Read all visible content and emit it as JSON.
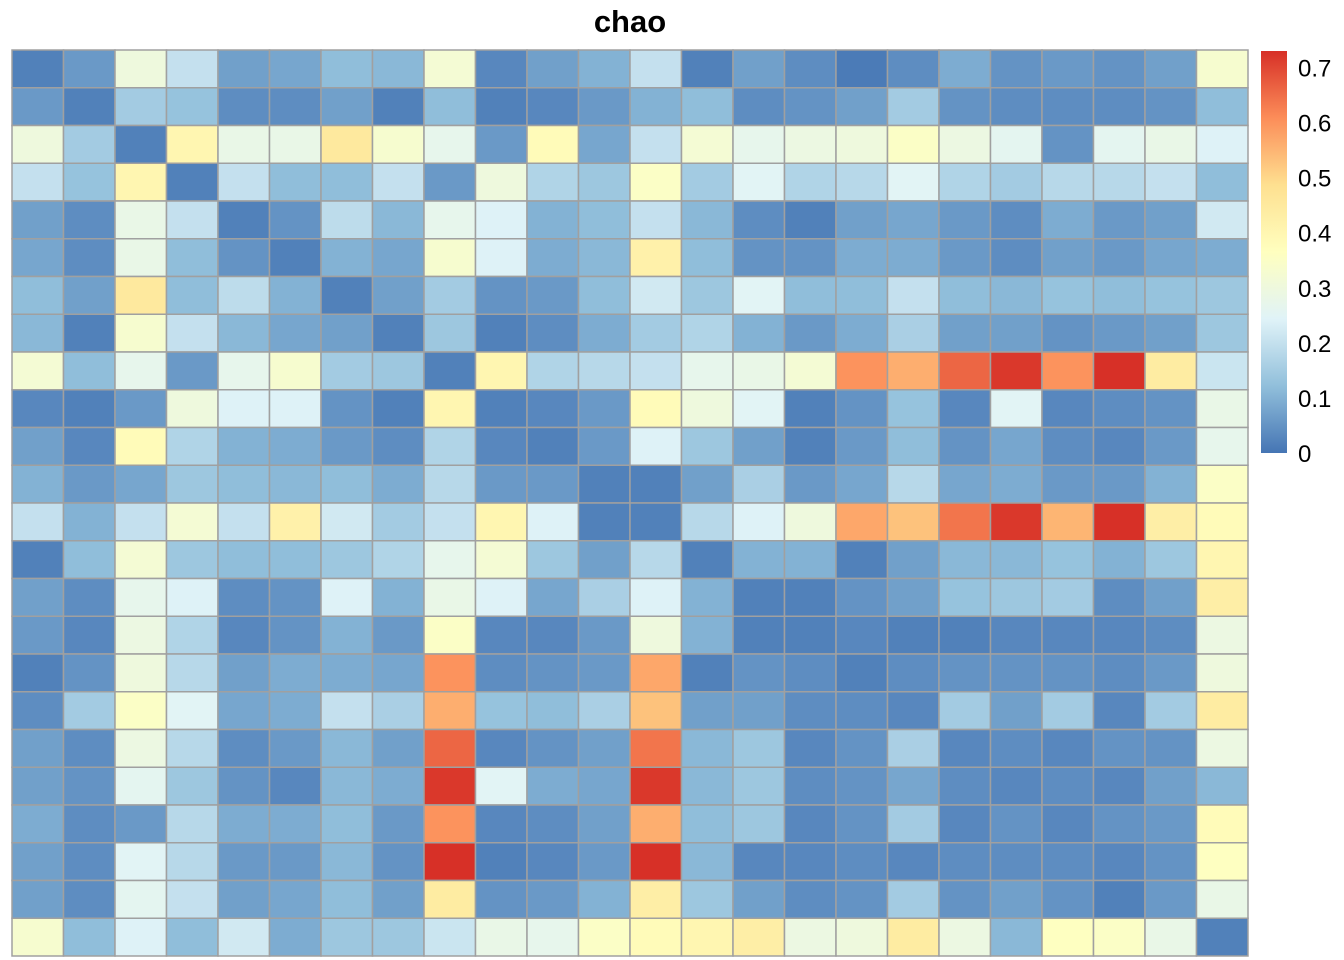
{
  "chart_data": {
    "type": "heatmap",
    "title": "chao",
    "colorbar": {
      "ticks": [
        0,
        0.1,
        0.2,
        0.3,
        0.4,
        0.5,
        0.6,
        0.7
      ],
      "tick_labels": [
        "0",
        "0.1",
        "0.2",
        "0.3",
        "0.4",
        "0.5",
        "0.6",
        "0.7"
      ],
      "min": 0,
      "max": 0.73,
      "colors": [
        "#4575b4",
        "#91bfdb",
        "#e0f3f8",
        "#ffffbf",
        "#fee090",
        "#fc8d59",
        "#d73027"
      ]
    },
    "grid": true,
    "grid_color": "#a0a0a0",
    "n_rows": 24,
    "n_cols": 24,
    "values": [
      [
        0.02,
        0.06,
        0.3,
        0.2,
        0.07,
        0.08,
        0.12,
        0.11,
        0.32,
        0.03,
        0.07,
        0.1,
        0.2,
        0.02,
        0.07,
        0.04,
        0.01,
        0.04,
        0.09,
        0.05,
        0.06,
        0.05,
        0.07,
        0.33
      ],
      [
        0.06,
        0.02,
        0.15,
        0.13,
        0.04,
        0.04,
        0.07,
        0.02,
        0.12,
        0.02,
        0.03,
        0.06,
        0.1,
        0.12,
        0.04,
        0.05,
        0.07,
        0.15,
        0.05,
        0.04,
        0.04,
        0.04,
        0.05,
        0.12
      ],
      [
        0.3,
        0.15,
        0.02,
        0.4,
        0.28,
        0.28,
        0.45,
        0.33,
        0.27,
        0.06,
        0.38,
        0.08,
        0.2,
        0.32,
        0.27,
        0.29,
        0.3,
        0.35,
        0.29,
        0.26,
        0.05,
        0.26,
        0.28,
        0.24
      ],
      [
        0.2,
        0.13,
        0.4,
        0.02,
        0.2,
        0.12,
        0.12,
        0.2,
        0.06,
        0.3,
        0.17,
        0.14,
        0.35,
        0.15,
        0.25,
        0.17,
        0.18,
        0.25,
        0.17,
        0.15,
        0.18,
        0.18,
        0.2,
        0.12
      ],
      [
        0.07,
        0.04,
        0.28,
        0.2,
        0.02,
        0.05,
        0.19,
        0.11,
        0.27,
        0.24,
        0.1,
        0.12,
        0.2,
        0.11,
        0.04,
        0.02,
        0.07,
        0.08,
        0.06,
        0.04,
        0.09,
        0.06,
        0.07,
        0.22
      ],
      [
        0.08,
        0.04,
        0.28,
        0.12,
        0.05,
        0.02,
        0.1,
        0.08,
        0.33,
        0.24,
        0.09,
        0.11,
        0.42,
        0.12,
        0.05,
        0.05,
        0.09,
        0.09,
        0.06,
        0.04,
        0.07,
        0.06,
        0.08,
        0.09
      ],
      [
        0.12,
        0.07,
        0.45,
        0.12,
        0.19,
        0.1,
        0.02,
        0.07,
        0.15,
        0.05,
        0.06,
        0.12,
        0.22,
        0.14,
        0.25,
        0.12,
        0.12,
        0.2,
        0.12,
        0.11,
        0.13,
        0.12,
        0.13,
        0.14
      ],
      [
        0.11,
        0.02,
        0.33,
        0.2,
        0.11,
        0.08,
        0.07,
        0.02,
        0.14,
        0.02,
        0.04,
        0.09,
        0.15,
        0.17,
        0.1,
        0.06,
        0.09,
        0.16,
        0.07,
        0.07,
        0.05,
        0.06,
        0.07,
        0.14
      ],
      [
        0.32,
        0.12,
        0.27,
        0.06,
        0.27,
        0.33,
        0.15,
        0.14,
        0.02,
        0.4,
        0.17,
        0.18,
        0.2,
        0.27,
        0.28,
        0.32,
        0.6,
        0.56,
        0.66,
        0.72,
        0.6,
        0.73,
        0.44,
        0.21
      ],
      [
        0.03,
        0.02,
        0.06,
        0.3,
        0.24,
        0.24,
        0.05,
        0.02,
        0.4,
        0.02,
        0.03,
        0.06,
        0.38,
        0.3,
        0.25,
        0.02,
        0.05,
        0.13,
        0.03,
        0.25,
        0.03,
        0.04,
        0.05,
        0.28
      ],
      [
        0.07,
        0.03,
        0.38,
        0.17,
        0.1,
        0.09,
        0.06,
        0.04,
        0.17,
        0.03,
        0.02,
        0.06,
        0.24,
        0.14,
        0.07,
        0.02,
        0.06,
        0.12,
        0.05,
        0.08,
        0.04,
        0.03,
        0.06,
        0.27
      ],
      [
        0.1,
        0.06,
        0.08,
        0.14,
        0.12,
        0.11,
        0.12,
        0.09,
        0.18,
        0.06,
        0.06,
        0.02,
        0.02,
        0.07,
        0.16,
        0.06,
        0.08,
        0.18,
        0.08,
        0.09,
        0.06,
        0.06,
        0.1,
        0.35
      ],
      [
        0.2,
        0.1,
        0.2,
        0.32,
        0.2,
        0.42,
        0.22,
        0.15,
        0.2,
        0.4,
        0.24,
        0.02,
        0.02,
        0.18,
        0.24,
        0.3,
        0.57,
        0.53,
        0.64,
        0.72,
        0.55,
        0.73,
        0.43,
        0.38
      ],
      [
        0.02,
        0.12,
        0.32,
        0.14,
        0.12,
        0.12,
        0.14,
        0.17,
        0.27,
        0.32,
        0.14,
        0.07,
        0.18,
        0.02,
        0.1,
        0.1,
        0.02,
        0.07,
        0.11,
        0.11,
        0.13,
        0.1,
        0.14,
        0.4
      ],
      [
        0.07,
        0.04,
        0.27,
        0.24,
        0.04,
        0.05,
        0.24,
        0.1,
        0.28,
        0.24,
        0.08,
        0.16,
        0.24,
        0.1,
        0.02,
        0.02,
        0.05,
        0.07,
        0.13,
        0.14,
        0.15,
        0.04,
        0.07,
        0.43
      ],
      [
        0.06,
        0.03,
        0.29,
        0.17,
        0.03,
        0.05,
        0.1,
        0.06,
        0.35,
        0.03,
        0.03,
        0.06,
        0.3,
        0.1,
        0.02,
        0.02,
        0.03,
        0.02,
        0.02,
        0.03,
        0.03,
        0.03,
        0.04,
        0.29
      ],
      [
        0.02,
        0.05,
        0.3,
        0.18,
        0.07,
        0.09,
        0.09,
        0.08,
        0.6,
        0.04,
        0.05,
        0.06,
        0.57,
        0.02,
        0.05,
        0.04,
        0.02,
        0.04,
        0.05,
        0.05,
        0.05,
        0.04,
        0.06,
        0.3
      ],
      [
        0.04,
        0.15,
        0.35,
        0.25,
        0.08,
        0.09,
        0.2,
        0.16,
        0.56,
        0.13,
        0.12,
        0.16,
        0.53,
        0.07,
        0.07,
        0.04,
        0.04,
        0.03,
        0.15,
        0.07,
        0.15,
        0.03,
        0.15,
        0.44
      ],
      [
        0.07,
        0.04,
        0.29,
        0.18,
        0.04,
        0.06,
        0.11,
        0.07,
        0.66,
        0.03,
        0.05,
        0.07,
        0.64,
        0.11,
        0.14,
        0.03,
        0.05,
        0.16,
        0.03,
        0.04,
        0.03,
        0.05,
        0.05,
        0.29
      ],
      [
        0.07,
        0.05,
        0.26,
        0.14,
        0.05,
        0.03,
        0.11,
        0.09,
        0.72,
        0.25,
        0.09,
        0.08,
        0.72,
        0.11,
        0.14,
        0.04,
        0.05,
        0.08,
        0.04,
        0.03,
        0.04,
        0.03,
        0.07,
        0.11
      ],
      [
        0.09,
        0.04,
        0.06,
        0.18,
        0.09,
        0.09,
        0.12,
        0.06,
        0.6,
        0.03,
        0.04,
        0.07,
        0.56,
        0.12,
        0.14,
        0.03,
        0.05,
        0.15,
        0.03,
        0.05,
        0.03,
        0.05,
        0.06,
        0.38
      ],
      [
        0.07,
        0.04,
        0.25,
        0.18,
        0.06,
        0.06,
        0.11,
        0.05,
        0.73,
        0.02,
        0.03,
        0.06,
        0.73,
        0.11,
        0.03,
        0.03,
        0.04,
        0.03,
        0.04,
        0.04,
        0.04,
        0.03,
        0.05,
        0.36
      ],
      [
        0.07,
        0.04,
        0.26,
        0.2,
        0.07,
        0.08,
        0.12,
        0.07,
        0.44,
        0.05,
        0.06,
        0.1,
        0.43,
        0.14,
        0.07,
        0.04,
        0.05,
        0.15,
        0.05,
        0.07,
        0.05,
        0.02,
        0.06,
        0.28
      ],
      [
        0.33,
        0.12,
        0.24,
        0.12,
        0.22,
        0.09,
        0.14,
        0.14,
        0.21,
        0.28,
        0.27,
        0.35,
        0.38,
        0.4,
        0.43,
        0.29,
        0.3,
        0.44,
        0.29,
        0.11,
        0.36,
        0.35,
        0.28,
        0.02
      ]
    ]
  }
}
